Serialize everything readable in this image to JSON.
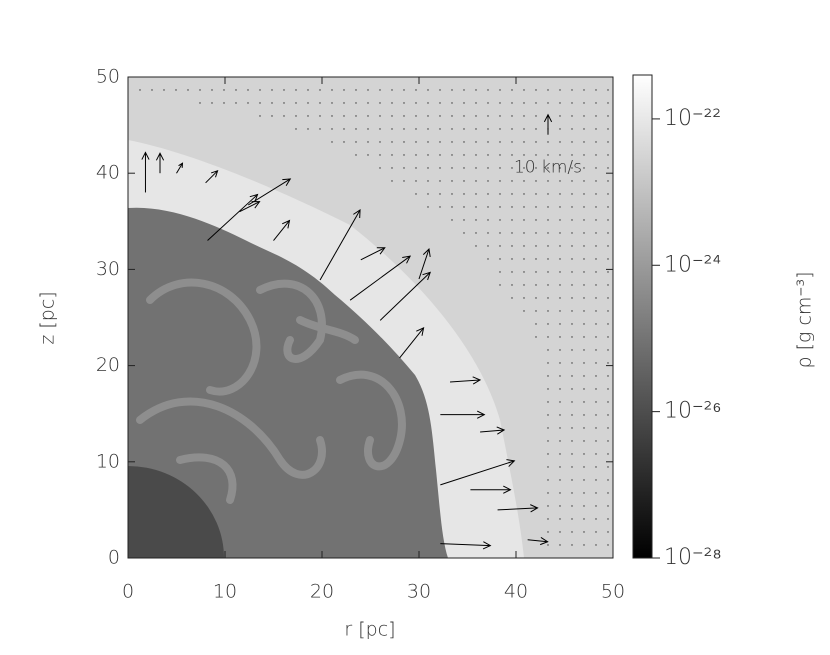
{
  "chart_data": {
    "type": "quiver",
    "xlabel": "r [pc]",
    "ylabel": "z [pc]",
    "xlim": [
      0,
      50
    ],
    "ylim": [
      0,
      50
    ],
    "xticks": [
      0,
      10,
      20,
      30,
      40,
      50
    ],
    "yticks": [
      0,
      10,
      20,
      30,
      40,
      50
    ],
    "arrow_color": "#000000",
    "vectors": {
      "x": [
        1.8,
        3.3,
        5.0,
        8.0,
        12.4,
        8.2,
        19.8,
        22.9,
        26.0,
        28.0,
        32.2,
        32.2,
        32.2,
        35.3,
        38.1,
        41.2,
        33.2,
        36.3,
        30.0,
        11.5,
        15.0,
        24.0
      ],
      "y": [
        38.0,
        40.0,
        40.0,
        39.0,
        36.7,
        33.0,
        28.9,
        26.8,
        24.7,
        20.8,
        14.9,
        7.6,
        1.5,
        7.1,
        5.0,
        1.9,
        18.3,
        13.1,
        29.0,
        36.0,
        33.0,
        31.0
      ],
      "u": [
        0,
        0,
        3,
        6,
        21,
        25,
        20,
        30,
        25,
        12,
        22,
        37,
        25,
        20,
        20,
        10,
        15,
        12,
        5,
        10,
        8,
        12
      ],
      "v": [
        20,
        10,
        5,
        6,
        13,
        23,
        35,
        22,
        24,
        15,
        0,
        12,
        -1,
        0,
        1,
        -1,
        1,
        1,
        15,
        5,
        10,
        6
      ]
    },
    "reference_vector": {
      "x": 43.3,
      "y": 44.0,
      "u": 0,
      "v": 10,
      "label": "10 km/s"
    },
    "colorbar": {
      "label": "ρ [g cm⁻³]",
      "lim": [
        -28,
        -21.4
      ],
      "colors": [
        "#000000",
        "#ffffff"
      ],
      "ticks": [
        {
          "value": -22,
          "label": "10⁻²²"
        },
        {
          "value": -24,
          "label": "10⁻²⁴"
        },
        {
          "value": -26,
          "label": "10⁻²⁶"
        },
        {
          "value": -28,
          "label": "10⁻²⁸"
        }
      ]
    }
  }
}
